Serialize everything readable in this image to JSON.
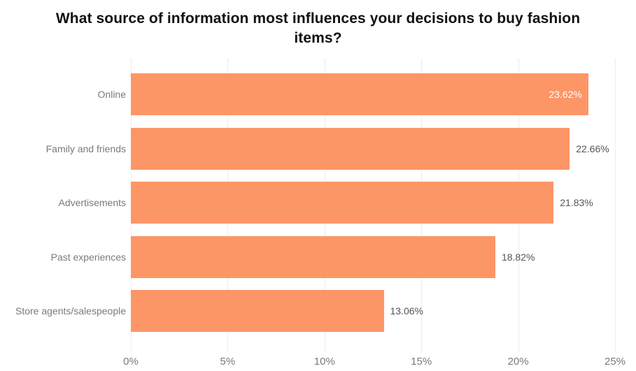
{
  "chart_data": {
    "type": "bar",
    "orientation": "horizontal",
    "title": "What source of information most influences your decisions to buy fashion items?",
    "categories": [
      "Online",
      "Family and friends",
      "Advertisements",
      "Past experiences",
      "Store agents/salespeople"
    ],
    "values": [
      23.62,
      22.66,
      21.83,
      18.82,
      13.06
    ],
    "value_labels": [
      "23.62%",
      "22.66%",
      "21.83%",
      "18.82%",
      "13.06%"
    ],
    "xlabel": "",
    "ylabel": "",
    "xlim": [
      0,
      25
    ],
    "x_tick_values": [
      0,
      5,
      10,
      15,
      20,
      25
    ],
    "x_tick_labels": [
      "0%",
      "5%",
      "10%",
      "15%",
      "20%",
      "25%"
    ],
    "grid": "vertical dotted gridlines",
    "legend": "none",
    "value_label_rule": "white inside bar when it does not fit outside, gray outside otherwise",
    "colors": {
      "bar": "#FC9667",
      "title": "#111111",
      "axis_text": "#7A7A7A",
      "value_text": "#555555",
      "value_text_inside": "#FFFFFF",
      "gridline": "#DBDBDB",
      "background": "#FFFFFF"
    }
  }
}
